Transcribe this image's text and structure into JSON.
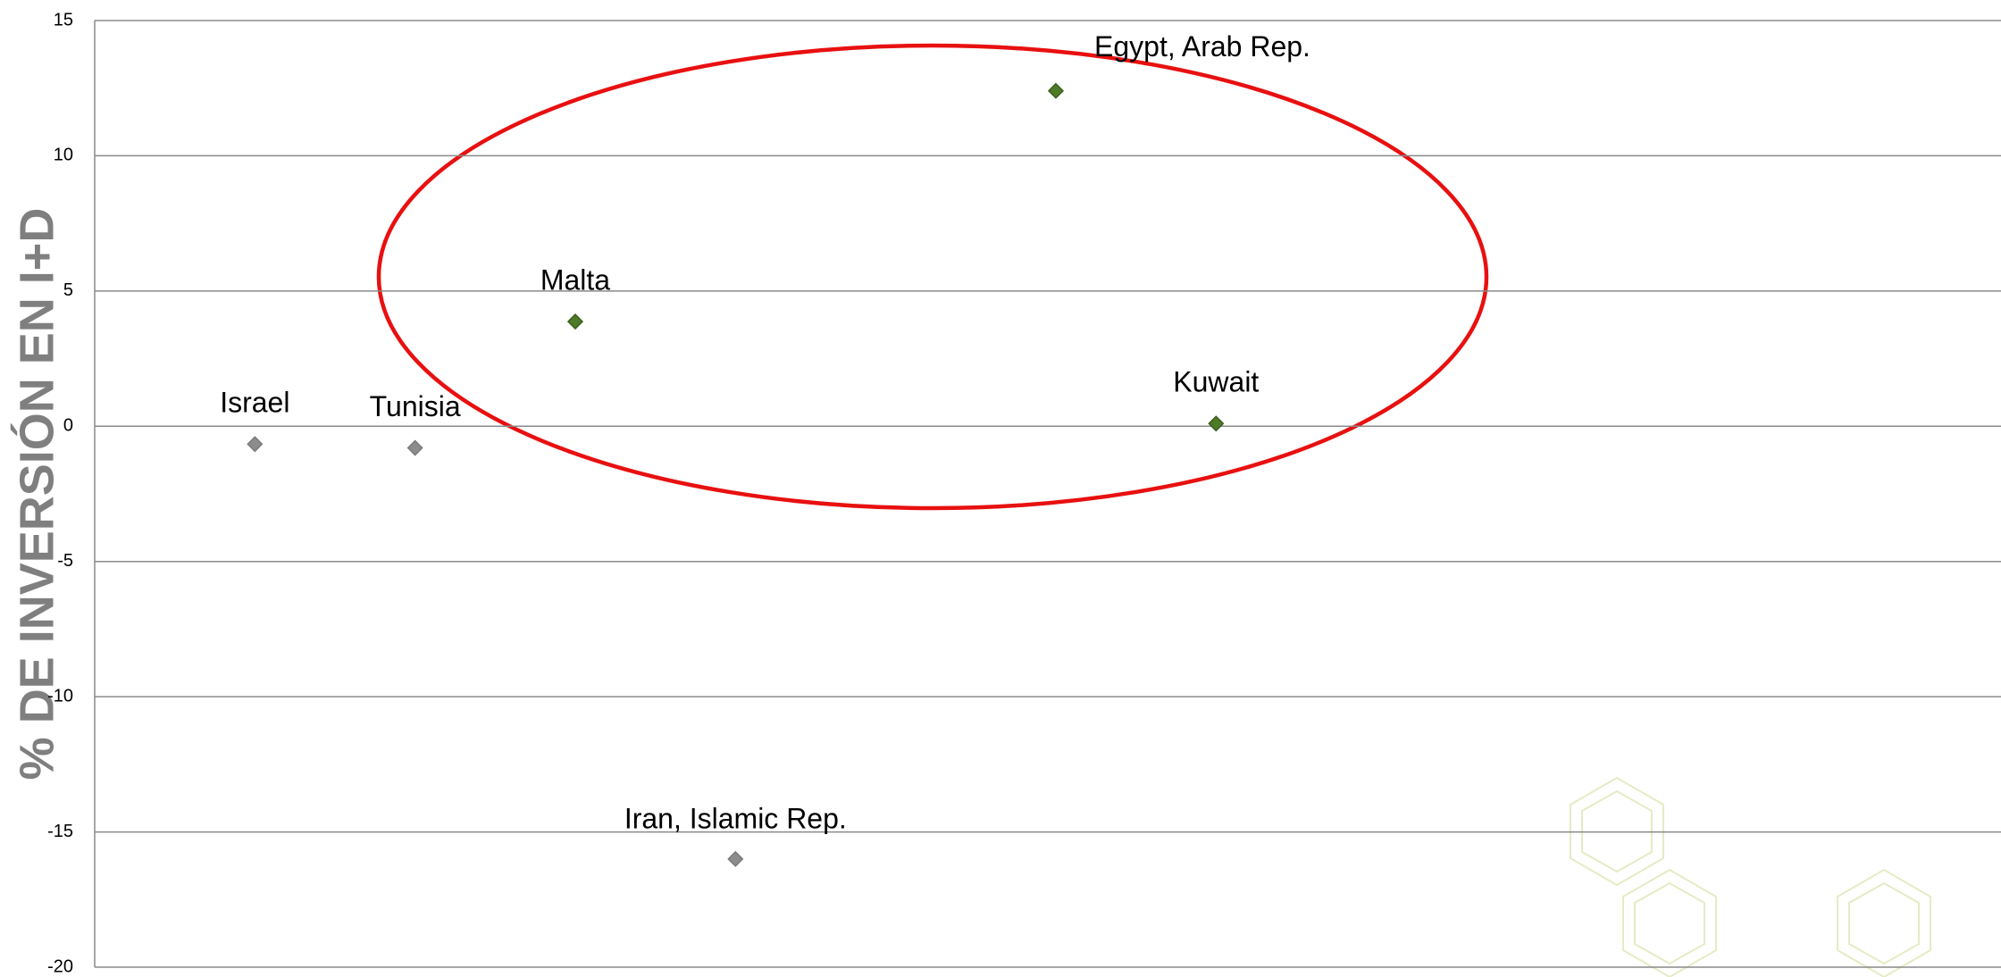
{
  "chart_data": {
    "type": "scatter",
    "y_axis_label": "% DE INVERSIÓN EN I+D",
    "categories": [
      "Israel",
      "Tunisia",
      "Malta",
      "Iran, Islamic Rep.",
      "Egypt, Arab Rep.",
      "Kuwait"
    ],
    "x": [
      1,
      2,
      3,
      4,
      6,
      7
    ],
    "values": [
      -0.66,
      -0.8,
      3.87,
      -16,
      12.4,
      0.1
    ],
    "colors": [
      "#8c8c8c",
      "#8c8c8c",
      "#4f7a28",
      "#8c8c8c",
      "#4f7a28",
      "#4f7a28"
    ],
    "xlim": [
      0,
      11.9
    ],
    "ylim": [
      -20,
      15
    ],
    "yticks": [
      -20,
      -15,
      -10,
      -5,
      0,
      5,
      10,
      15
    ],
    "grid": true
  }
}
